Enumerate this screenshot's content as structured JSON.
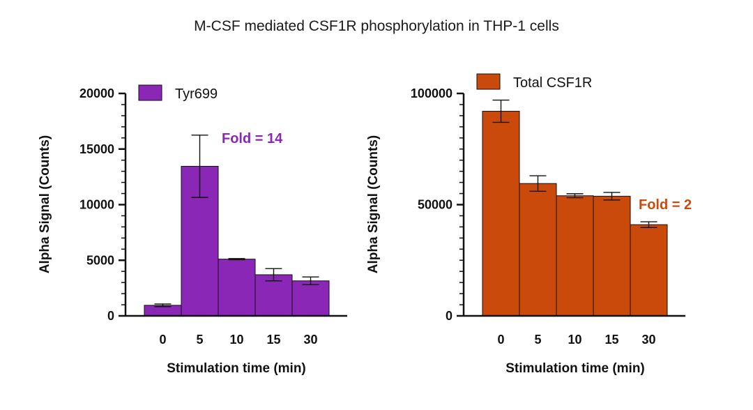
{
  "title": "M-CSF mediated CSF1R phosphorylation in THP-1 cells",
  "chart_data": [
    {
      "type": "bar",
      "categories": [
        "0",
        "5",
        "10",
        "15",
        "30"
      ],
      "series": [
        {
          "name": "Tyr699",
          "values": [
            950,
            13450,
            5100,
            3700,
            3150
          ],
          "errors": [
            120,
            2800,
            50,
            550,
            350
          ]
        }
      ],
      "color": "#8a27b6",
      "xlabel": "Stimulation time (min)",
      "ylabel": "Alpha Signal (Counts)",
      "ylim": [
        0,
        20000
      ],
      "yticks": [
        "0",
        "5000",
        "10000",
        "15000",
        "20000"
      ],
      "legend_position": "top-left",
      "annotation": "Fold = 14",
      "grid": false
    },
    {
      "type": "bar",
      "categories": [
        "0",
        "5",
        "10",
        "15",
        "30"
      ],
      "series": [
        {
          "name": "Total CSF1R",
          "values": [
            92000,
            59500,
            54000,
            53800,
            41000
          ],
          "errors": [
            5000,
            3500,
            900,
            1700,
            1300
          ]
        }
      ],
      "color": "#c94a0a",
      "xlabel": "Stimulation time (min)",
      "ylabel": "Alpha Signal (Counts)",
      "ylim": [
        0,
        100000
      ],
      "yticks": [
        "0",
        "50000",
        "100000"
      ],
      "legend_position": "top-left",
      "annotation": "Fold = 2",
      "grid": false
    }
  ]
}
